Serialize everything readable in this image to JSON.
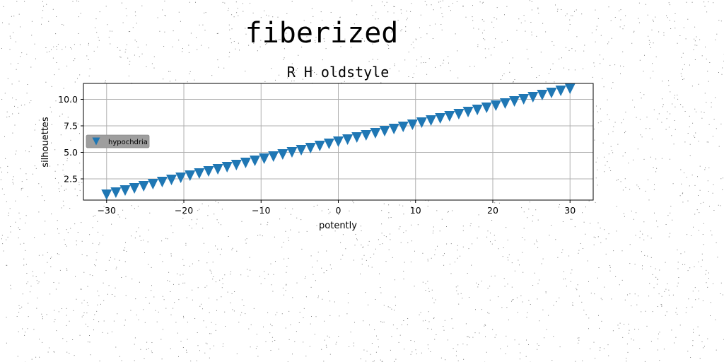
{
  "chart_data": {
    "type": "scatter",
    "suptitle": "fiberized",
    "title": "R H oldstyle",
    "xlabel": "potently",
    "ylabel": "silhouettes",
    "xlim": [
      -33,
      33
    ],
    "ylim": [
      0.5,
      11.5
    ],
    "xticks": [
      -30,
      -20,
      -10,
      0,
      10,
      20,
      30
    ],
    "xtick_labels": [
      "−30",
      "−20",
      "−10",
      "0",
      "10",
      "20",
      "30"
    ],
    "yticks": [
      2.5,
      5.0,
      7.5,
      10.0
    ],
    "ytick_labels": [
      "2.5",
      "5.0",
      "7.5",
      "10.0"
    ],
    "grid": true,
    "legend_position": "center-left",
    "series": [
      {
        "name": "hypochdria",
        "marker": "triangle-down",
        "color": "#1f77b4",
        "x_start": -30,
        "x_end": 30,
        "x_step": 1.2,
        "y_start": 1.0,
        "y_end": 11.0
      }
    ]
  }
}
